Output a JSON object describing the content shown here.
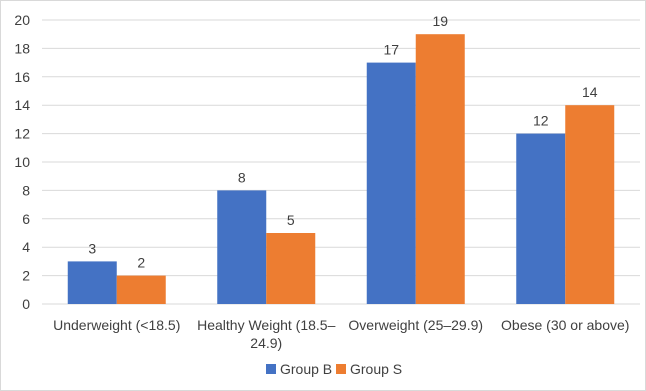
{
  "chart_data": {
    "type": "bar",
    "title": "",
    "xlabel": "",
    "ylabel": "",
    "ylim": [
      0,
      20
    ],
    "yticks": [
      0,
      2,
      4,
      6,
      8,
      10,
      12,
      14,
      16,
      18,
      20
    ],
    "grid": true,
    "legend_position": "bottom",
    "categories": [
      [
        "Underweight (<18.5)"
      ],
      [
        "Healthy Weight (18.5–",
        "24.9)"
      ],
      [
        "Overweight (25–29.9)"
      ],
      [
        "Obese (30 or above)"
      ]
    ],
    "series": [
      {
        "name": "Group B",
        "values": [
          3,
          8,
          17,
          12
        ],
        "color": "#4472c4"
      },
      {
        "name": "Group S",
        "values": [
          2,
          5,
          19,
          14
        ],
        "color": "#ed7d31"
      }
    ]
  }
}
